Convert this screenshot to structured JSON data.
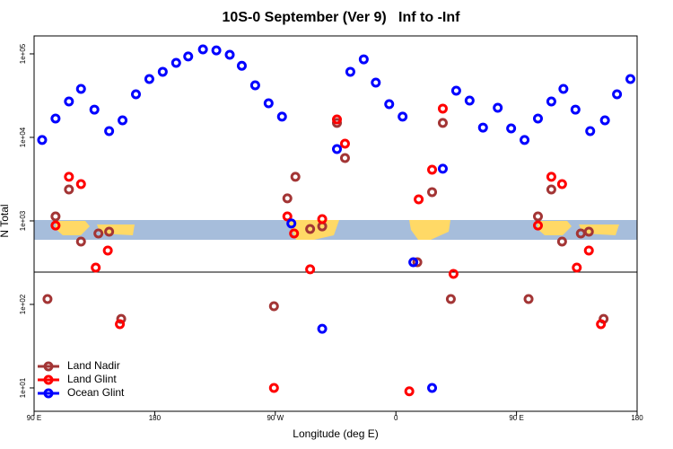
{
  "chart_data": {
    "type": "scatter",
    "title": "10S-0 September (Ver 9)   Inf to -Inf",
    "xlabel": "Longitude (deg E)",
    "ylabel": "N Total",
    "log_y": true,
    "legend": "bottom-left",
    "xlim": [
      90,
      540
    ],
    "xticks": [
      {
        "value": 90,
        "label": "90 E"
      },
      180,
      {
        "value": 270,
        "label": "90 W"
      },
      {
        "value": 360,
        "label": "0"
      },
      {
        "value": 450,
        "label": "90 E"
      },
      {
        "value": 540,
        "label": "180"
      }
    ],
    "ylim": [
      5.25,
      164000
    ],
    "yticks": [
      {
        "value": 10,
        "label": "1e+01"
      },
      {
        "value": 100,
        "label": "1e+02"
      },
      {
        "value": 1000,
        "label": "1e+03"
      },
      {
        "value": 10000,
        "label": "1e+04"
      },
      {
        "value": 100000,
        "label": "1e+05"
      }
    ],
    "series": [
      {
        "name": "Land Nadir",
        "color": "#a33535",
        "x": [
          100,
          106,
          116,
          125,
          138,
          146,
          155,
          269,
          279,
          285,
          296,
          305,
          316,
          322,
          376,
          387,
          395,
          401,
          459,
          466,
          476,
          484,
          498,
          504,
          515
        ],
        "values": [
          116,
          1130,
          2380,
          566,
          707,
          743,
          67,
          95,
          1860,
          3370,
          800,
          860,
          14900,
          5660,
          320,
          2210,
          14900,
          116,
          116,
          1130,
          2380,
          566,
          707,
          743,
          67
        ]
      },
      {
        "name": "Land Glint",
        "color": "#ff0000",
        "x": [
          106,
          116,
          125,
          136,
          145,
          154,
          269,
          279,
          284,
          296,
          305,
          316,
          322,
          370,
          377,
          387,
          395,
          403,
          466,
          476,
          484,
          495,
          504,
          513
        ],
        "values": [
          880,
          3370,
          2760,
          276,
          442,
          58,
          10,
          1130,
          707,
          263,
          1050,
          16400,
          8400,
          9.1,
          1810,
          4100,
          22100,
          232,
          880,
          3370,
          2760,
          276,
          442,
          58
        ]
      },
      {
        "name": "Ocean Glint",
        "color": "#0000ff",
        "x": [
          96,
          106,
          116,
          125,
          135,
          146,
          156,
          166,
          176,
          186,
          196,
          205,
          216,
          226,
          236,
          245,
          255,
          265,
          275,
          282,
          305,
          316,
          326,
          336,
          345,
          355,
          365,
          373,
          387,
          395,
          405,
          415,
          425,
          436,
          446,
          456,
          466,
          476,
          485,
          494,
          505,
          516,
          525,
          535
        ],
        "values": [
          9300,
          16800,
          26900,
          38100,
          21500,
          11900,
          16000,
          32800,
          50000,
          61000,
          78000,
          93000,
          113000,
          110000,
          97500,
          72000,
          42000,
          25600,
          17700,
          930,
          51,
          7240,
          61000,
          86000,
          45300,
          25000,
          17700,
          320,
          10,
          4210,
          36200,
          27600,
          13100,
          22600,
          12800,
          9300,
          16800,
          26900,
          38100,
          21500,
          11900,
          16000,
          32800,
          50000
        ]
      }
    ]
  }
}
